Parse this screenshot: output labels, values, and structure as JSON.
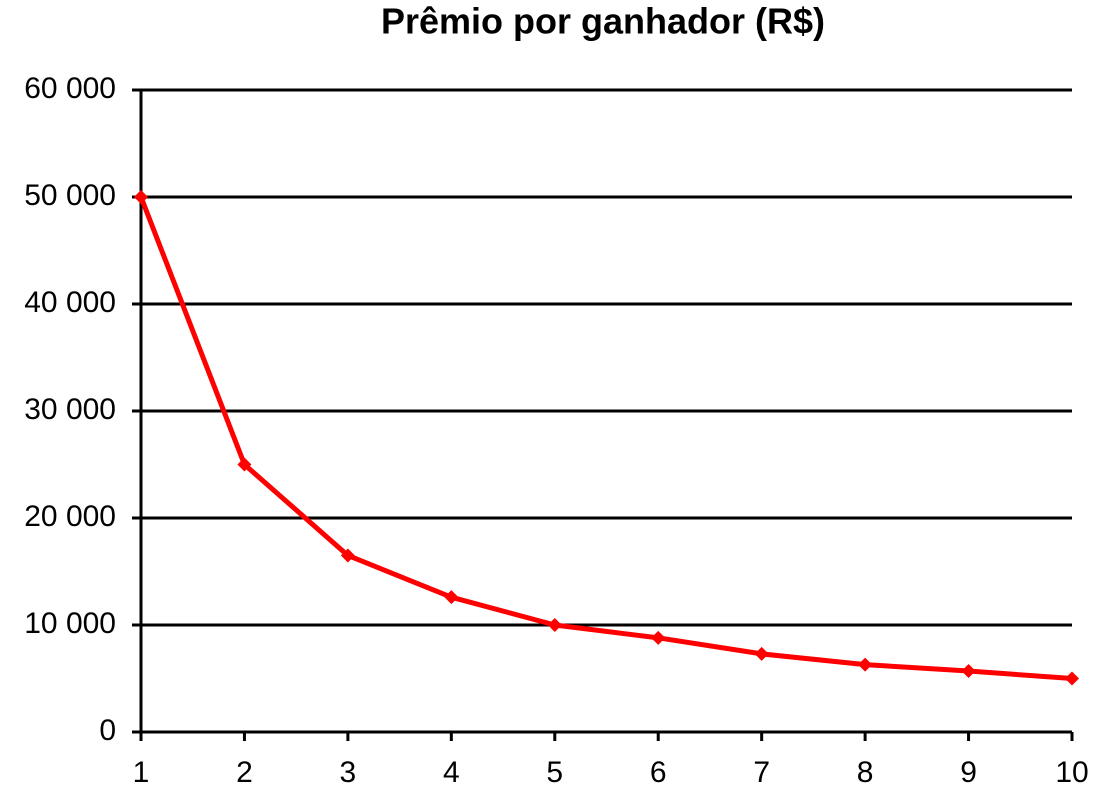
{
  "chart_data": {
    "type": "line",
    "title": "Prêmio por ganhador (R$)",
    "x": [
      1,
      2,
      3,
      4,
      5,
      6,
      7,
      8,
      9,
      10
    ],
    "series": [
      {
        "color": "#ff0000",
        "values": [
          50000,
          25000,
          16500,
          12600,
          10000,
          8800,
          7300,
          6300,
          5700,
          5000
        ]
      }
    ],
    "xlim": [
      1,
      10
    ],
    "xticks": [
      1,
      2,
      3,
      4,
      5,
      6,
      7,
      8,
      9,
      10
    ],
    "ylim": [
      0,
      60000
    ],
    "yticks": [
      0,
      {
        "value": 10000,
        "label": "10 000"
      },
      {
        "value": 20000,
        "label": "20 000"
      },
      {
        "value": 30000,
        "label": "30 000"
      },
      {
        "value": 40000,
        "label": "40 000"
      },
      {
        "value": 50000,
        "label": "50 000"
      },
      {
        "value": 60000,
        "label": "60 000"
      }
    ],
    "grid": true
  }
}
